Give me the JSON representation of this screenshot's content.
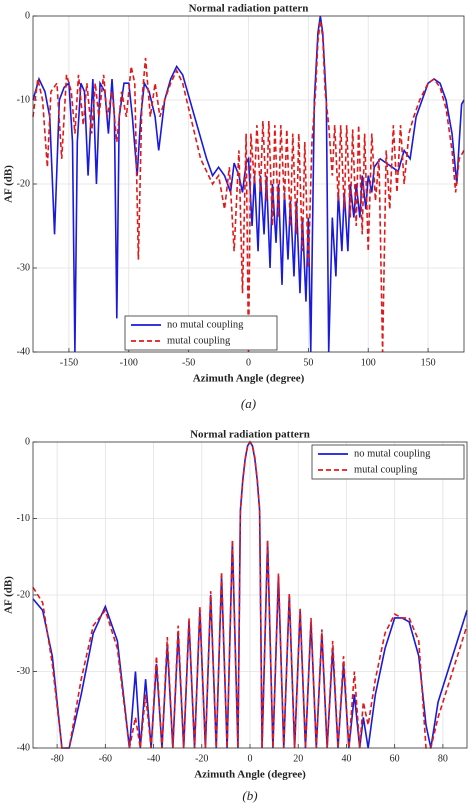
{
  "chart_data": [
    {
      "type": "line",
      "title": "Normal radiation pattern",
      "xlabel": "Azimuth Angle (degree)",
      "ylabel": "AF (dB)",
      "caption": "(a)",
      "xlim": [
        -180,
        180
      ],
      "xticks": [
        -150,
        -100,
        -50,
        0,
        50,
        100,
        150
      ],
      "ylim": [
        -40,
        0
      ],
      "yticks": [
        -40,
        -30,
        -20,
        -10,
        0
      ],
      "grid": true,
      "legend": "lower left",
      "series": [
        {
          "name": "no mutal coupling",
          "color": "#1a1adc",
          "linestyle": "solid",
          "x": [
            -180,
            -175,
            -170,
            -166,
            -162,
            -158,
            -154,
            -150,
            -147,
            -145,
            -143,
            -140,
            -137,
            -134,
            -130,
            -127,
            -124,
            -120,
            -117,
            -114,
            -112,
            -110,
            -108,
            -104,
            -100,
            -97,
            -93,
            -90,
            -87,
            -83,
            -78,
            -75,
            -70,
            -65,
            -60,
            -55,
            -45,
            -35,
            -30,
            -25,
            -20,
            -15,
            -12,
            -8,
            -5,
            -2,
            0,
            3,
            5,
            8,
            10,
            13,
            15,
            18,
            20,
            23,
            25,
            28,
            30,
            33,
            35,
            38,
            40,
            43,
            45,
            48,
            50,
            52,
            55,
            58,
            60,
            62,
            65,
            67,
            70,
            73,
            75,
            78,
            80,
            83,
            85,
            88,
            90,
            93,
            95,
            98,
            100,
            103,
            105,
            110,
            115,
            120,
            125,
            130,
            135,
            140,
            145,
            150,
            155,
            160,
            165,
            170,
            174,
            176,
            178,
            180
          ],
          "values": [
            -10,
            -7.5,
            -9,
            -12,
            -26,
            -10,
            -8.5,
            -8,
            -15,
            -40,
            -15,
            -8,
            -9,
            -19,
            -7.5,
            -20,
            -8,
            -9,
            -14,
            -7.5,
            -12,
            -36,
            -12,
            -8,
            -8,
            -12,
            -19,
            -12,
            -8,
            -9,
            -12,
            -16,
            -10,
            -7.5,
            -6,
            -7,
            -12,
            -17,
            -19,
            -18,
            -19,
            -21,
            -17.5,
            -19,
            -21,
            -17.5,
            -17,
            -25,
            -19,
            -28,
            -19,
            -26,
            -19,
            -30,
            -20,
            -27,
            -20,
            -32,
            -21,
            -29,
            -22,
            -31,
            -22,
            -33,
            -24,
            -34,
            -24,
            -40,
            -10,
            -2,
            0,
            -2,
            -10,
            -40,
            -24,
            -31,
            -21,
            -28,
            -21,
            -28,
            -20,
            -24,
            -20,
            -24,
            -19,
            -23,
            -19,
            -21,
            -18,
            -17,
            -17.5,
            -18,
            -18.5,
            -16,
            -17,
            -12,
            -10,
            -8,
            -7.5,
            -8,
            -10,
            -14,
            -20,
            -15,
            -10.5,
            -10
          ]
        },
        {
          "name": "mutal coupling",
          "color": "#e01a1a",
          "linestyle": "dashed",
          "x": [
            -180,
            -176,
            -172,
            -168,
            -165,
            -160,
            -156,
            -152,
            -148,
            -145,
            -142,
            -138,
            -135,
            -131,
            -128,
            -125,
            -121,
            -118,
            -114,
            -110,
            -106,
            -102,
            -98,
            -95,
            -92,
            -89,
            -86,
            -82,
            -78,
            -74,
            -70,
            -65,
            -60,
            -55,
            -50,
            -45,
            -40,
            -35,
            -30,
            -25,
            -20,
            -16,
            -12,
            -8,
            -5,
            -2,
            0,
            2,
            5,
            7,
            10,
            12,
            15,
            17,
            20,
            22,
            25,
            27,
            30,
            32,
            35,
            37,
            40,
            42,
            45,
            47,
            50,
            53,
            56,
            58,
            60,
            62,
            64,
            67,
            70,
            72,
            75,
            77,
            80,
            82,
            85,
            87,
            90,
            92,
            95,
            97,
            100,
            103,
            106,
            109,
            112,
            115,
            118,
            121,
            124,
            127,
            130,
            134,
            138,
            143,
            150,
            155,
            160,
            165,
            170,
            173,
            176,
            180
          ],
          "values": [
            -12,
            -7.5,
            -10,
            -18,
            -9,
            -8,
            -17,
            -7,
            -9,
            -14,
            -7,
            -13,
            -8,
            -14,
            -8,
            -12,
            -7,
            -12,
            -9,
            -15,
            -9,
            -12,
            -6,
            -8,
            -29,
            -10,
            -5,
            -12,
            -8,
            -12,
            -10,
            -8,
            -6.5,
            -8,
            -11,
            -14,
            -17,
            -18.5,
            -20,
            -19,
            -23,
            -18,
            -28,
            -16,
            -33,
            -14,
            -40,
            -14,
            -20,
            -13,
            -21,
            -12.5,
            -22,
            -12.5,
            -25,
            -13,
            -24,
            -13,
            -22,
            -13.5,
            -25,
            -14,
            -26,
            -14,
            -28,
            -15,
            -30,
            -15,
            -9,
            -3,
            -0.5,
            -2.5,
            -9,
            -13,
            -19,
            -13,
            -22,
            -13,
            -23,
            -13,
            -24,
            -13.5,
            -25,
            -13,
            -26,
            -14,
            -28,
            -14,
            -22,
            -17,
            -40,
            -16,
            -23,
            -13,
            -21,
            -13,
            -20,
            -14,
            -12,
            -10,
            -8,
            -7.5,
            -8.5,
            -11,
            -16,
            -21,
            -17,
            -16
          ]
        }
      ]
    },
    {
      "type": "line",
      "title": "Normal radiation pattern",
      "xlabel": "Azimuth Angle (degree)",
      "ylabel": "AF (dB)",
      "caption": "(b)",
      "xlim": [
        -90,
        90
      ],
      "xticks": [
        -80,
        -60,
        -40,
        -20,
        0,
        20,
        40,
        60,
        80
      ],
      "ylim": [
        -40,
        0
      ],
      "yticks": [
        -40,
        -30,
        -20,
        -10,
        0
      ],
      "grid": true,
      "legend": "upper right",
      "x": [
        -90,
        -86,
        -82,
        -78,
        -75,
        -70,
        -65,
        -60,
        -55,
        -50,
        -47.5,
        -45.5,
        -43.3,
        -41,
        -38.8,
        -36.5,
        -34.3,
        -32,
        -29.8,
        -27.5,
        -25.3,
        -23,
        -20.8,
        -18.5,
        -16.3,
        -14,
        -11.8,
        -9.5,
        -7.3,
        -5,
        -4,
        -3,
        -2,
        -1,
        0,
        1,
        2,
        3,
        4,
        5,
        7.3,
        9.5,
        11.8,
        14,
        16.3,
        18.5,
        20.8,
        23,
        25.3,
        27.5,
        29.8,
        32,
        34.3,
        36.5,
        38.8,
        41,
        43.3,
        45.5,
        47,
        49,
        52,
        56,
        60,
        63,
        66,
        70,
        73,
        75,
        78,
        82,
        86,
        90
      ],
      "series": [
        {
          "name": "no mutal coupling",
          "color": "#1a1adc",
          "linestyle": "solid",
          "values": [
            -20.5,
            -22,
            -28,
            -40,
            -40,
            -33,
            -25,
            -21.5,
            -26,
            -40,
            -30,
            -40,
            -31,
            -40,
            -29,
            -40,
            -26.5,
            -40,
            -25,
            -40,
            -23.5,
            -40,
            -22,
            -40,
            -20,
            -40,
            -17.5,
            -40,
            -13,
            -40,
            -9,
            -5,
            -2.2,
            -0.5,
            0,
            -0.5,
            -2.2,
            -5,
            -9,
            -40,
            -13,
            -40,
            -17.5,
            -40,
            -20,
            -40,
            -22,
            -40,
            -23.5,
            -40,
            -25,
            -40,
            -27,
            -40,
            -29,
            -40,
            -33,
            -40,
            -36,
            -40,
            -33,
            -27,
            -23,
            -23,
            -23.5,
            -28,
            -37,
            -40,
            -34,
            -30,
            -26,
            -22
          ]
        },
        {
          "name": "mutal coupling",
          "color": "#e01a1a",
          "linestyle": "dashed",
          "values": [
            -19,
            -21,
            -29,
            -40,
            -40,
            -31,
            -24,
            -22,
            -27,
            -40,
            -36,
            -40,
            -33,
            -40,
            -28,
            -40,
            -25.5,
            -40,
            -24,
            -40,
            -23,
            -40,
            -21.5,
            -40,
            -19.5,
            -40,
            -17,
            -40,
            -12.8,
            -40,
            -9.2,
            -5.2,
            -2.3,
            -0.6,
            0,
            -0.4,
            -2,
            -4.8,
            -8.8,
            -40,
            -12.8,
            -40,
            -17.2,
            -40,
            -19.8,
            -40,
            -21.8,
            -40,
            -23,
            -40,
            -24.5,
            -40,
            -26,
            -40,
            -28,
            -40,
            -30,
            -40,
            -34,
            -37,
            -31,
            -25,
            -22.5,
            -23,
            -23,
            -26,
            -40,
            -40,
            -36,
            -32,
            -28,
            -24
          ]
        }
      ]
    }
  ]
}
